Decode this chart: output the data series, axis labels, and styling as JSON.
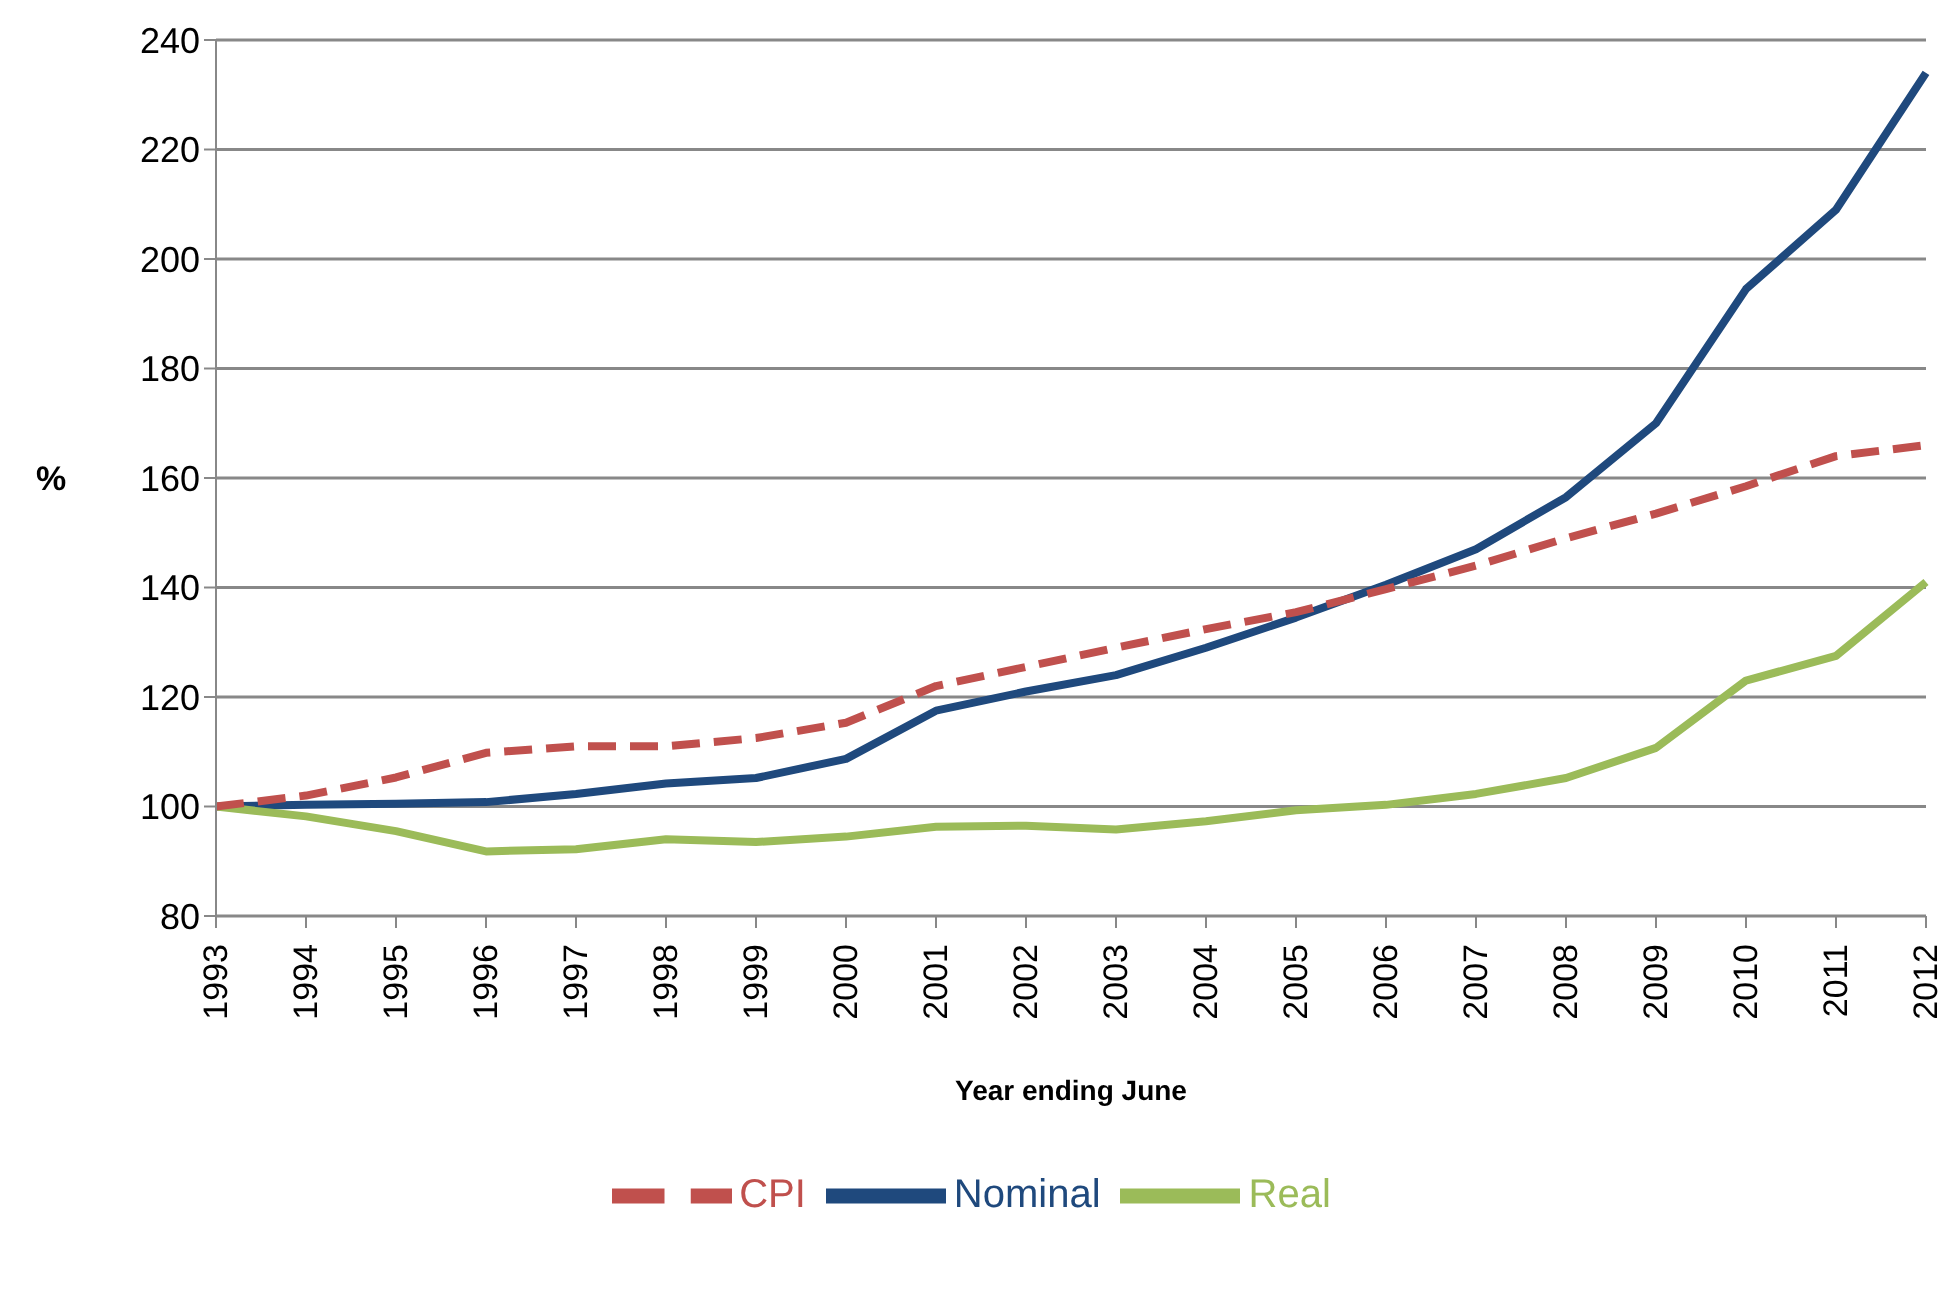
{
  "chart_data": {
    "type": "line",
    "xlabel": "Year ending June",
    "ylabel": "%",
    "categories": [
      "1993",
      "1994",
      "1995",
      "1996",
      "1997",
      "1998",
      "1999",
      "2000",
      "2001",
      "2002",
      "2003",
      "2004",
      "2005",
      "2006",
      "2007",
      "2008",
      "2009",
      "2010",
      "2011",
      "2012"
    ],
    "series": [
      {
        "name": "Nominal",
        "color": "#1f497d",
        "values": [
          100,
          100.3,
          100.5,
          100.8,
          102.3,
          104.2,
          105.2,
          108.7,
          117.5,
          121,
          124,
          129,
          134.5,
          140.5,
          147,
          156.5,
          170,
          194.5,
          209,
          234
        ]
      },
      {
        "name": "Real",
        "color": "#9bbb59",
        "values": [
          100,
          98.2,
          95.5,
          91.8,
          92.2,
          94,
          93.5,
          94.5,
          96.3,
          96.5,
          95.8,
          97.3,
          99.3,
          100.3,
          102.3,
          105.2,
          110.7,
          123,
          127.5,
          141
        ]
      },
      {
        "name": "CPI",
        "color": "#c0504d",
        "line_style": "dashed",
        "values": [
          100,
          102,
          105.3,
          109.8,
          111,
          111,
          112.5,
          115.3,
          122,
          125.5,
          129,
          132.4,
          135.5,
          139.7,
          144,
          149,
          153.5,
          158.5,
          164,
          166
        ]
      }
    ],
    "ylim": [
      80,
      240
    ],
    "yticks": [
      80,
      100,
      120,
      140,
      160,
      180,
      200,
      220,
      240
    ],
    "grid": "y",
    "legend": "bottom",
    "marker": "none"
  }
}
